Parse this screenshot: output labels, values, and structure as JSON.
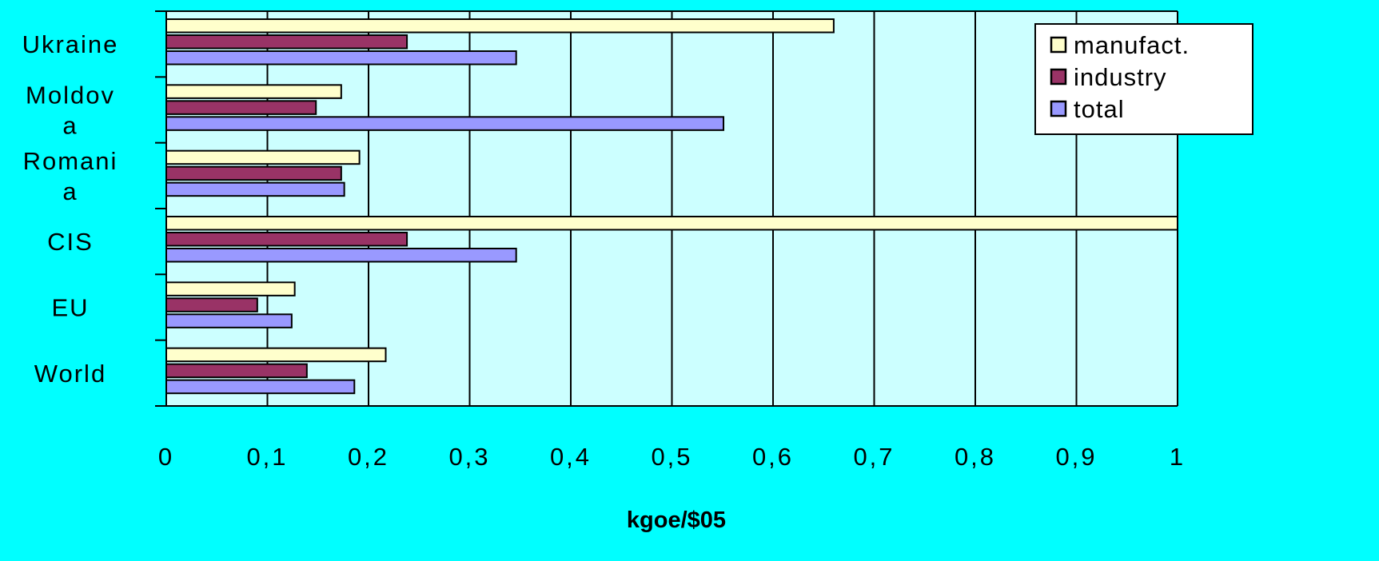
{
  "chart_data": {
    "type": "bar",
    "orientation": "horizontal",
    "title": "",
    "xlabel": "kgoe/$05",
    "ylabel": "",
    "xlim": [
      0,
      1
    ],
    "x_ticks": [
      "0",
      "0,1",
      "0,2",
      "0,3",
      "0,4",
      "0,5",
      "0,6",
      "0,7",
      "0,8",
      "0,9",
      "1"
    ],
    "grid": true,
    "legend_position": "top-right",
    "plot_background": "#CCFFFF",
    "page_background": "#00FFFF",
    "categories": [
      {
        "lines": [
          "Ukraine"
        ]
      },
      {
        "lines": [
          "Moldov",
          "a"
        ]
      },
      {
        "lines": [
          "Romani",
          "a"
        ]
      },
      {
        "lines": [
          "CIS"
        ]
      },
      {
        "lines": [
          "EU"
        ]
      },
      {
        "lines": [
          "World"
        ]
      }
    ],
    "series": [
      {
        "name": "manufact.",
        "color": "#FFFFCC",
        "values": [
          0.66,
          0.173,
          0.191,
          1.0,
          0.127,
          0.217
        ]
      },
      {
        "name": "industry",
        "color": "#993366",
        "values": [
          0.238,
          0.148,
          0.173,
          0.238,
          0.09,
          0.139
        ]
      },
      {
        "name": "total",
        "color": "#9999FF",
        "values": [
          0.346,
          0.551,
          0.176,
          0.346,
          0.124,
          0.186
        ]
      }
    ]
  }
}
